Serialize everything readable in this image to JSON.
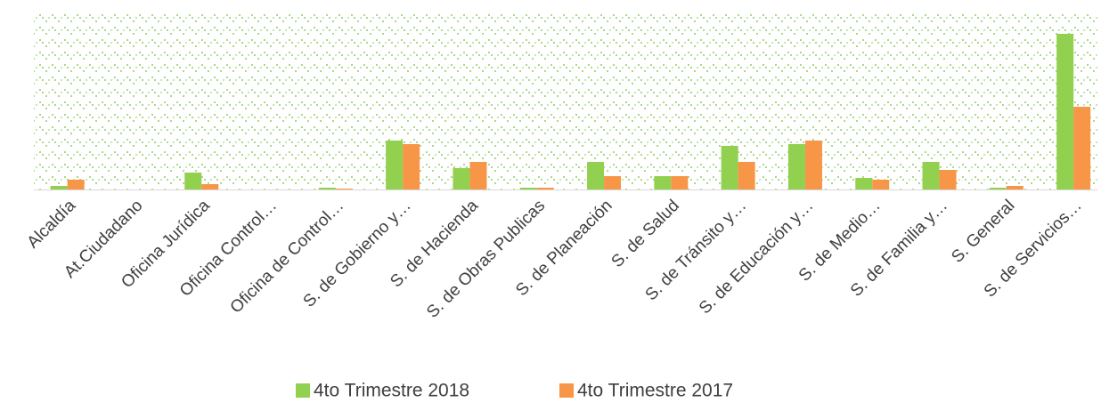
{
  "chart_data": {
    "type": "bar",
    "categories": [
      "Alcaldía",
      "At.Ciudadano",
      "Oficina Jurídica",
      "Oficina Control…",
      "Oficina de Control…",
      "S. de Gobierno y…",
      "S. de Hacienda",
      "S. de Obras Publicas",
      "S. de Planeación",
      "S. de Salud",
      "S. de Tránsito y…",
      "S. de Educación y…",
      "S. de Medio…",
      "S. de Familia y…",
      "S. General",
      "S. de Servicios…"
    ],
    "series": [
      {
        "name": "4to Trimestre 2018",
        "color": "#92d050",
        "values": [
          4,
          0,
          19,
          0,
          2,
          55,
          24,
          2,
          31,
          15,
          49,
          51,
          13,
          31,
          2,
          175
        ]
      },
      {
        "name": "4to Trimestre 2017",
        "color": "#f79646",
        "values": [
          11,
          0,
          6,
          0,
          1,
          51,
          31,
          2,
          15,
          15,
          31,
          55,
          11,
          22,
          4,
          93
        ]
      }
    ],
    "legend": "bottom"
  }
}
